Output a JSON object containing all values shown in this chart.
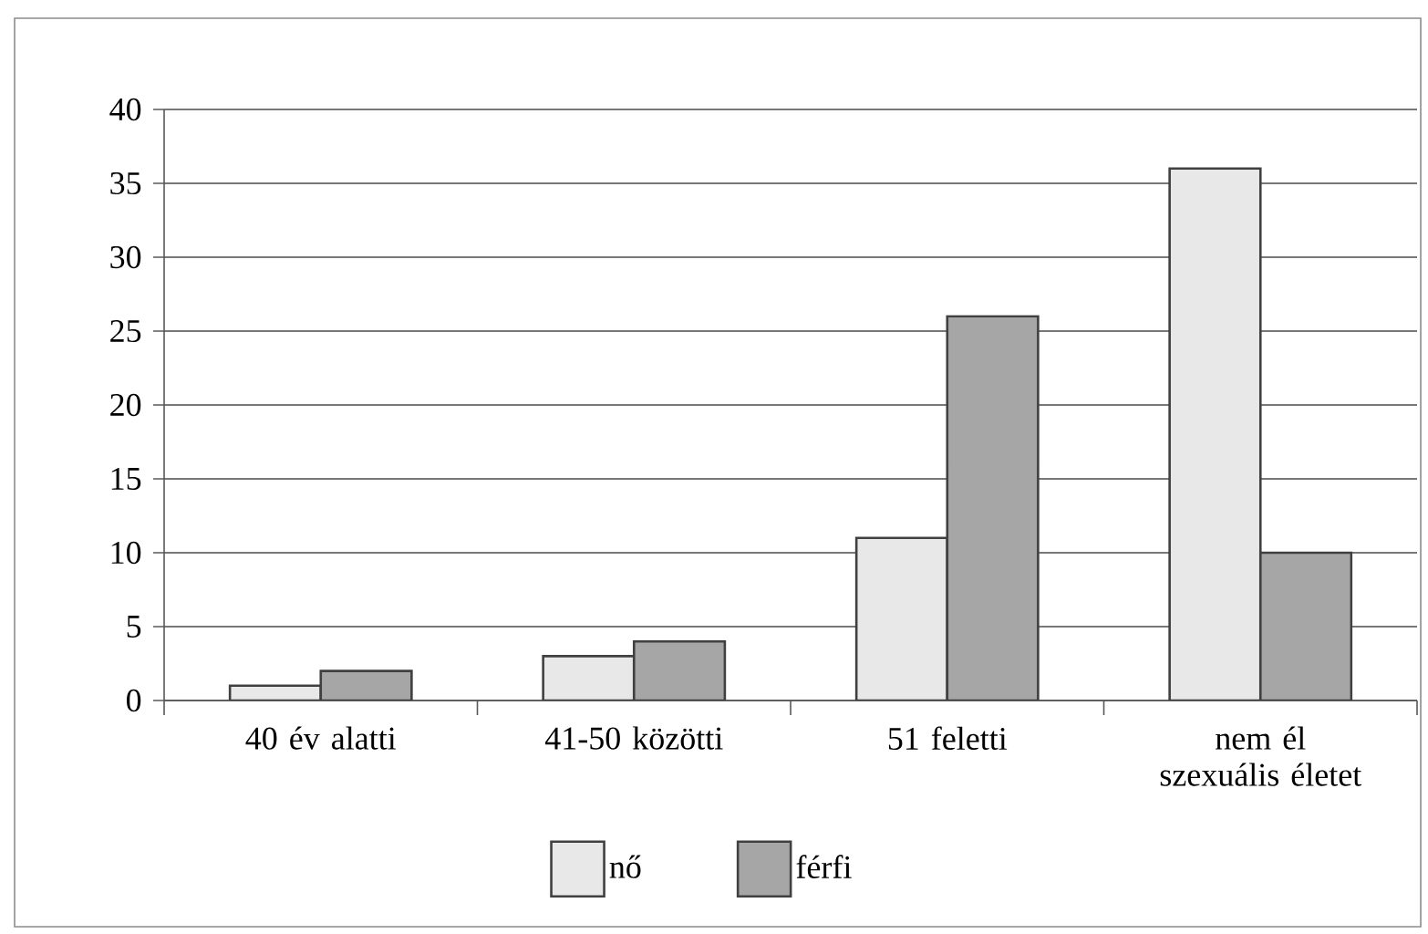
{
  "chart_data": {
    "type": "bar",
    "categories": [
      "40 év alatti",
      "41-50 közötti",
      "51 feletti",
      "nem él szexuális életet"
    ],
    "series": [
      {
        "name": "nő",
        "color": "#e8e8e8",
        "values": [
          1,
          3,
          11,
          36
        ]
      },
      {
        "name": "férfi",
        "color": "#a6a6a6",
        "values": [
          2,
          4,
          26,
          10
        ]
      }
    ],
    "ylim": [
      0,
      40
    ],
    "yticks": [
      0,
      5,
      10,
      15,
      20,
      25,
      30,
      35,
      40
    ],
    "grid": "y",
    "legend": "bottom"
  }
}
